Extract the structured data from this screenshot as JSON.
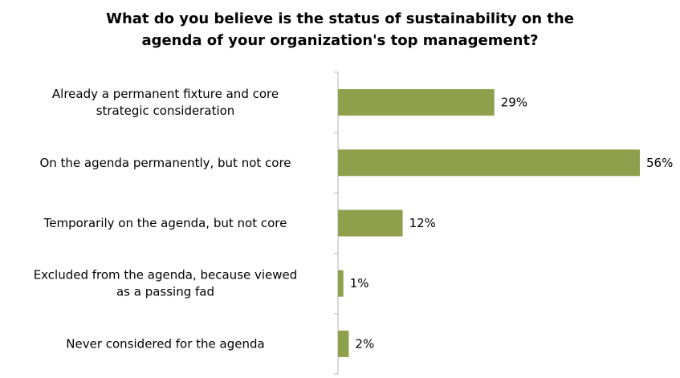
{
  "chart_data": {
    "type": "bar",
    "orientation": "horizontal",
    "title_lines": [
      "What do you believe is the status of sustainability on the",
      "agenda of your organization's top management?"
    ],
    "categories": [
      [
        "Already a permanent fixture and core",
        "strategic consideration"
      ],
      [
        "On the agenda permanently, but not core"
      ],
      [
        "Temporarily on the agenda, but not core"
      ],
      [
        "Excluded from the agenda, because viewed",
        "as a passing fad"
      ],
      [
        "Never considered for the agenda"
      ]
    ],
    "values": [
      29,
      56,
      12,
      1,
      2
    ],
    "data_labels": [
      "29%",
      "56%",
      "12%",
      "1%",
      "2%"
    ],
    "unit": "%",
    "xlim": [
      0,
      56
    ],
    "grid": false,
    "legend": "none",
    "bar_color": "#8ea04b",
    "axis_color": "#b3b3b3"
  }
}
